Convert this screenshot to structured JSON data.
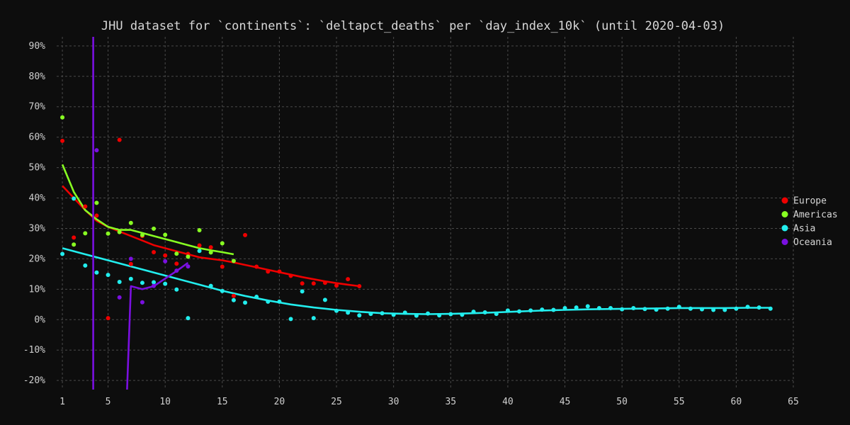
{
  "chart_data": {
    "type": "scatter",
    "title": "JHU dataset for `continents`: `deltapct_deaths` per `day_index_10k` (until 2020-04-03)",
    "xlabel": "",
    "ylabel": "",
    "xlim": [
      0.5,
      65
    ],
    "ylim": [
      -23,
      93
    ],
    "x_ticks": [
      1,
      5,
      10,
      15,
      20,
      25,
      30,
      35,
      40,
      45,
      50,
      55,
      60,
      65
    ],
    "y_ticks": [
      -20,
      -10,
      0,
      10,
      20,
      30,
      40,
      50,
      60,
      70,
      80,
      90
    ],
    "x_tick_labels": [
      "1",
      "5",
      "10",
      "15",
      "20",
      "25",
      "30",
      "35",
      "40",
      "45",
      "50",
      "55",
      "60",
      "65"
    ],
    "y_tick_labels": [
      "-20%",
      "-10%",
      "0%",
      "10%",
      "20%",
      "30%",
      "40%",
      "50%",
      "60%",
      "70%",
      "80%",
      "90%"
    ],
    "grid": true,
    "legend_position": "right",
    "series": [
      {
        "name": "Europe",
        "color": "#ee0000",
        "points": [
          [
            1,
            58.8
          ],
          [
            2,
            27
          ],
          [
            3,
            37.2
          ],
          [
            4,
            34.2
          ],
          [
            5,
            0.5
          ],
          [
            6,
            59.1
          ],
          [
            7,
            18.3
          ],
          [
            8,
            27.5
          ],
          [
            9,
            22.2
          ],
          [
            10,
            21.1
          ],
          [
            11,
            18.4
          ],
          [
            12,
            21.6
          ],
          [
            13,
            24.4
          ],
          [
            14,
            23.8
          ],
          [
            15,
            17.4
          ],
          [
            16,
            7.8
          ],
          [
            17,
            27.8
          ],
          [
            18,
            17.4
          ],
          [
            19,
            15.8
          ],
          [
            20,
            15.8
          ],
          [
            21,
            14.4
          ],
          [
            22,
            11.9
          ],
          [
            23,
            11.9
          ],
          [
            24,
            12.1
          ],
          [
            25,
            11.2
          ],
          [
            26,
            13.3
          ],
          [
            27,
            11
          ]
        ],
        "trend": [
          [
            1,
            44
          ],
          [
            2,
            40
          ],
          [
            3,
            36
          ],
          [
            4,
            32.5
          ],
          [
            5,
            30.5
          ],
          [
            6,
            29
          ],
          [
            7,
            27.5
          ],
          [
            8,
            26
          ],
          [
            9,
            24.5
          ],
          [
            10,
            23.5
          ],
          [
            11,
            22.5
          ],
          [
            12,
            21.5
          ],
          [
            13,
            20.5
          ],
          [
            14,
            20
          ],
          [
            15,
            19.5
          ],
          [
            16,
            18.8
          ],
          [
            17,
            18
          ],
          [
            18,
            17.2
          ],
          [
            19,
            16.4
          ],
          [
            20,
            15.6
          ],
          [
            21,
            14.8
          ],
          [
            22,
            14
          ],
          [
            23,
            13.3
          ],
          [
            24,
            12.6
          ],
          [
            25,
            12
          ],
          [
            26,
            11.5
          ],
          [
            27,
            11
          ]
        ]
      },
      {
        "name": "Americas",
        "color": "#88ff22",
        "points": [
          [
            1,
            66.5
          ],
          [
            2,
            24.7
          ],
          [
            3,
            28.4
          ],
          [
            4,
            38.4
          ],
          [
            5,
            28.3
          ],
          [
            6,
            28.8
          ],
          [
            7,
            31.8
          ],
          [
            8,
            27.8
          ],
          [
            9,
            29.9
          ],
          [
            10,
            27.9
          ],
          [
            11,
            21.7
          ],
          [
            12,
            20.7
          ],
          [
            13,
            29.4
          ],
          [
            14,
            22.1
          ],
          [
            15,
            25.1
          ],
          [
            16,
            19.3
          ]
        ],
        "trend": [
          [
            1,
            51
          ],
          [
            2,
            42
          ],
          [
            3,
            36
          ],
          [
            4,
            33
          ],
          [
            5,
            30.5
          ],
          [
            6,
            29.5
          ],
          [
            7,
            29.5
          ],
          [
            8,
            28.5
          ],
          [
            9,
            27.5
          ],
          [
            10,
            26.5
          ],
          [
            11,
            25.5
          ],
          [
            12,
            24.5
          ],
          [
            13,
            23.5
          ],
          [
            14,
            22.8
          ],
          [
            15,
            22.2
          ],
          [
            16,
            21.5
          ]
        ]
      },
      {
        "name": "Asia",
        "color": "#22eeee",
        "points": [
          [
            1,
            21.6
          ],
          [
            2,
            39.8
          ],
          [
            3,
            17.8
          ],
          [
            4,
            15.5
          ],
          [
            5,
            14.7
          ],
          [
            6,
            12.4
          ],
          [
            7,
            13.4
          ],
          [
            8,
            12.1
          ],
          [
            9,
            12.3
          ],
          [
            10,
            11.8
          ],
          [
            11,
            9.9
          ],
          [
            12,
            0.5
          ],
          [
            13,
            22.6
          ],
          [
            14,
            11.1
          ],
          [
            15,
            9.4
          ],
          [
            16,
            6.4
          ],
          [
            17,
            5.6
          ],
          [
            18,
            7.5
          ],
          [
            19,
            5.9
          ],
          [
            20,
            5.9
          ],
          [
            21,
            0.2
          ],
          [
            22,
            9.3
          ],
          [
            23,
            0.5
          ],
          [
            24,
            6.5
          ],
          [
            25,
            2.9
          ],
          [
            26,
            2.3
          ],
          [
            27,
            1.4
          ],
          [
            28,
            1.9
          ],
          [
            29,
            2.1
          ],
          [
            30,
            1.6
          ],
          [
            31,
            2.3
          ],
          [
            32,
            1.3
          ],
          [
            33,
            2
          ],
          [
            34,
            1.4
          ],
          [
            35,
            1.8
          ],
          [
            36,
            1.6
          ],
          [
            37,
            2.6
          ],
          [
            38,
            2.4
          ],
          [
            39,
            1.9
          ],
          [
            40,
            3
          ],
          [
            41,
            2.7
          ],
          [
            42,
            3
          ],
          [
            43,
            3.3
          ],
          [
            44,
            3.2
          ],
          [
            45,
            3.8
          ],
          [
            46,
            4
          ],
          [
            47,
            4.4
          ],
          [
            48,
            3.8
          ],
          [
            49,
            3.8
          ],
          [
            50,
            3.4
          ],
          [
            51,
            3.8
          ],
          [
            52,
            3.5
          ],
          [
            53,
            3.3
          ],
          [
            54,
            3.6
          ],
          [
            55,
            4.2
          ],
          [
            56,
            3.6
          ],
          [
            57,
            3.4
          ],
          [
            58,
            3.2
          ],
          [
            59,
            3.2
          ],
          [
            60,
            3.6
          ],
          [
            61,
            4.2
          ],
          [
            62,
            4
          ],
          [
            63,
            3.6
          ]
        ],
        "trend": [
          [
            1,
            23.5
          ],
          [
            3,
            21.5
          ],
          [
            5,
            19.5
          ],
          [
            7,
            17.5
          ],
          [
            9,
            15.5
          ],
          [
            11,
            13.5
          ],
          [
            13,
            11.5
          ],
          [
            15,
            9.5
          ],
          [
            17,
            7.8
          ],
          [
            19,
            6.3
          ],
          [
            21,
            5
          ],
          [
            23,
            4
          ],
          [
            25,
            3.2
          ],
          [
            27,
            2.6
          ],
          [
            29,
            2.1
          ],
          [
            31,
            1.9
          ],
          [
            33,
            1.8
          ],
          [
            35,
            1.9
          ],
          [
            37,
            2.1
          ],
          [
            39,
            2.4
          ],
          [
            41,
            2.7
          ],
          [
            43,
            3
          ],
          [
            45,
            3.2
          ],
          [
            47,
            3.4
          ],
          [
            49,
            3.5
          ],
          [
            51,
            3.6
          ],
          [
            53,
            3.7
          ],
          [
            55,
            3.8
          ],
          [
            57,
            3.8
          ],
          [
            59,
            3.8
          ],
          [
            61,
            3.9
          ],
          [
            63,
            3.9
          ]
        ]
      },
      {
        "name": "Oceania",
        "color": "#7a10e0",
        "points": [
          [
            4,
            55.7
          ],
          [
            6,
            7.3
          ],
          [
            7,
            20
          ],
          [
            8,
            5.7
          ],
          [
            9,
            11.1
          ],
          [
            10,
            19.2
          ],
          [
            11,
            16.1
          ],
          [
            12,
            17.5
          ]
        ],
        "trend": [
          [
            3.7,
            120
          ],
          [
            3.7,
            -40
          ],
          [
            6.5,
            -40
          ],
          [
            7,
            11
          ],
          [
            8,
            10
          ],
          [
            9,
            11
          ],
          [
            10,
            13.5
          ],
          [
            11,
            16
          ],
          [
            12,
            18.7
          ]
        ]
      }
    ]
  }
}
